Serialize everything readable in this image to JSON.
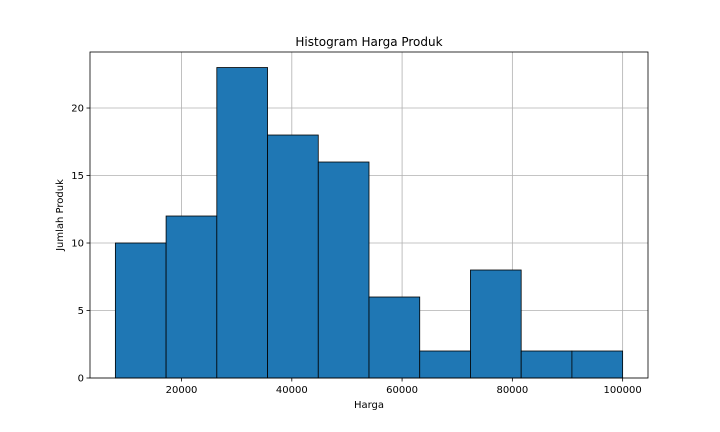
{
  "chart_data": {
    "type": "bar",
    "title": "Histogram Harga Produk",
    "xlabel": "Harga",
    "ylabel": "Jumlah Produk",
    "bin_edges": [
      8000,
      17200,
      26400,
      35600,
      44800,
      54000,
      63200,
      72400,
      81600,
      90800,
      100000
    ],
    "values": [
      10,
      12,
      23,
      18,
      16,
      6,
      2,
      8,
      2,
      2
    ],
    "xlim": [
      3400,
      104600
    ],
    "ylim": [
      0,
      24.15
    ],
    "xticks": [
      20000,
      40000,
      60000,
      80000,
      100000
    ],
    "xtick_labels": [
      "20000",
      "40000",
      "60000",
      "80000",
      "100000"
    ],
    "yticks": [
      0,
      5,
      10,
      15,
      20
    ],
    "ytick_labels": [
      "0",
      "5",
      "10",
      "15",
      "20"
    ],
    "grid": true,
    "bar_color": "#1f77b4",
    "edge_color": "#000000"
  }
}
